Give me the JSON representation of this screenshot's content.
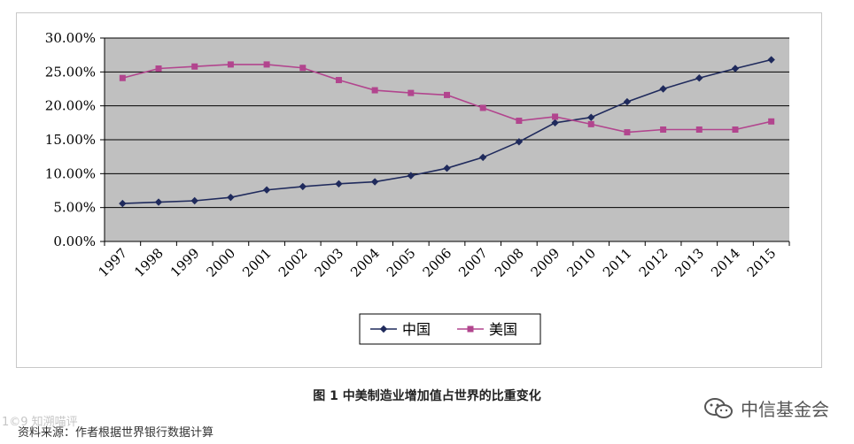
{
  "chart_data": {
    "type": "line",
    "title": "",
    "xlabel": "",
    "ylabel": "",
    "categories": [
      "1997",
      "1998",
      "1999",
      "2000",
      "2001",
      "2002",
      "2003",
      "2004",
      "2005",
      "2006",
      "2007",
      "2008",
      "2009",
      "2010",
      "2011",
      "2012",
      "2013",
      "2014",
      "2015"
    ],
    "ylim": [
      0,
      30
    ],
    "y_ticks": [
      "0.00%",
      "5.00%",
      "10.00%",
      "15.00%",
      "20.00%",
      "25.00%",
      "30.00%"
    ],
    "y_tick_values": [
      0,
      5,
      10,
      15,
      20,
      25,
      30
    ],
    "grid": true,
    "legend_position": "bottom-center",
    "background": "#c0c0c0",
    "series": [
      {
        "name": "中国",
        "color": "#1f2a5c",
        "marker": "diamond",
        "values": [
          5.6,
          5.8,
          6.0,
          6.5,
          7.6,
          8.1,
          8.5,
          8.8,
          9.7,
          10.8,
          12.4,
          14.7,
          17.5,
          18.3,
          20.6,
          22.5,
          24.1,
          25.5,
          26.8
        ]
      },
      {
        "name": "美国",
        "color": "#b2458e",
        "marker": "square",
        "values": [
          24.1,
          25.5,
          25.8,
          26.1,
          26.1,
          25.6,
          23.8,
          22.3,
          21.9,
          21.6,
          19.7,
          17.8,
          18.4,
          17.3,
          16.1,
          16.5,
          16.5,
          16.5,
          17.7
        ]
      }
    ]
  },
  "caption": "图 1  中美制造业增加值占世界的比重变化",
  "source": "资料来源：作者根据世界银行数据计算",
  "watermark_left": "1©9 知溯喵评",
  "brand": "中信基金会"
}
